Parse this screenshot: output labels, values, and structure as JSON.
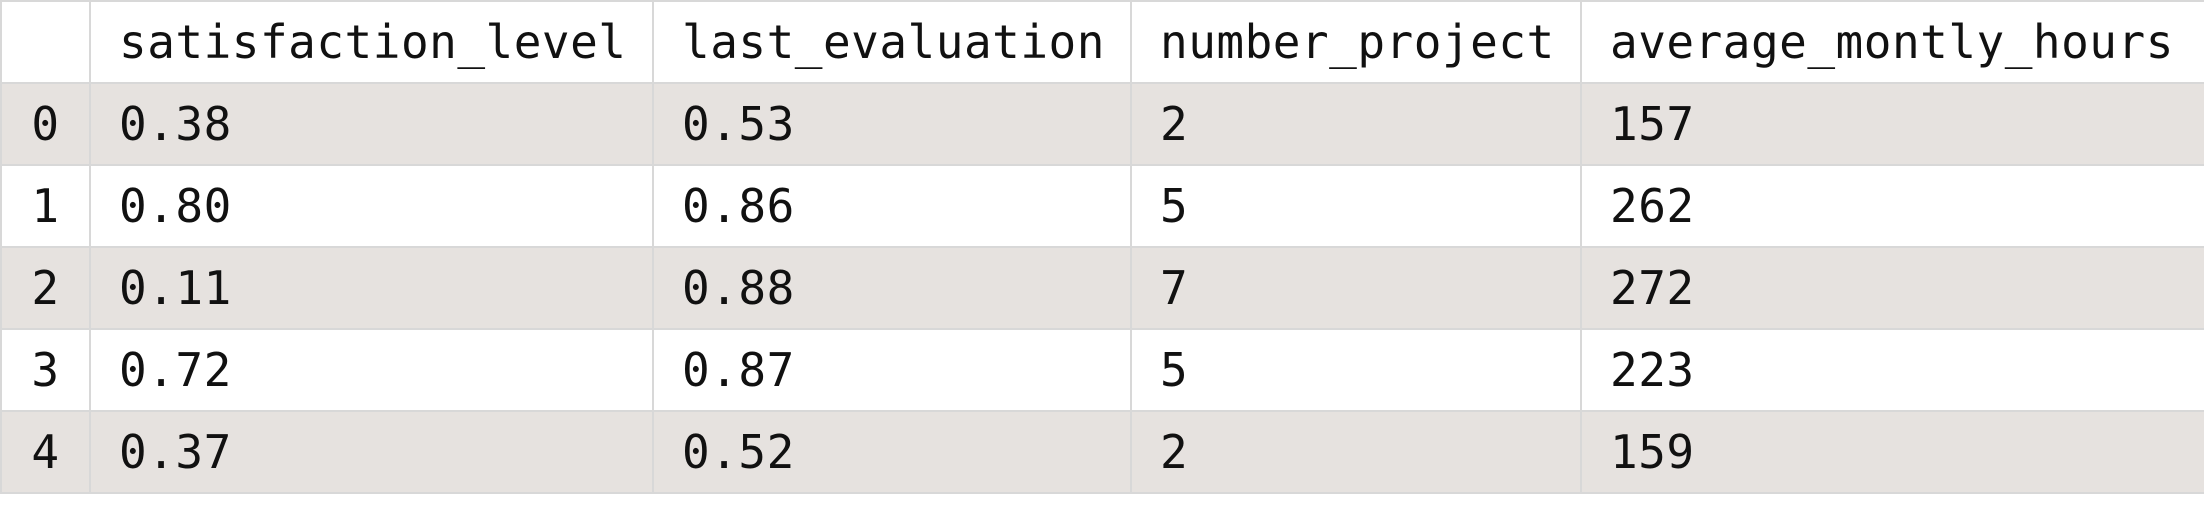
{
  "table": {
    "index_header": "",
    "columns": [
      "satisfaction_level",
      "last_evaluation",
      "number_project",
      "average_montly_hours"
    ],
    "rows": [
      {
        "index": "0",
        "cells": [
          "0.38",
          "0.53",
          "2",
          "157"
        ]
      },
      {
        "index": "1",
        "cells": [
          "0.80",
          "0.86",
          "5",
          "262"
        ]
      },
      {
        "index": "2",
        "cells": [
          "0.11",
          "0.88",
          "7",
          "272"
        ]
      },
      {
        "index": "3",
        "cells": [
          "0.72",
          "0.87",
          "5",
          "223"
        ]
      },
      {
        "index": "4",
        "cells": [
          "0.37",
          "0.52",
          "2",
          "159"
        ]
      }
    ],
    "colors": {
      "stripe": "#e6e2df",
      "background": "#ffffff",
      "border": "#d8d8d8",
      "text": "#111111"
    }
  }
}
